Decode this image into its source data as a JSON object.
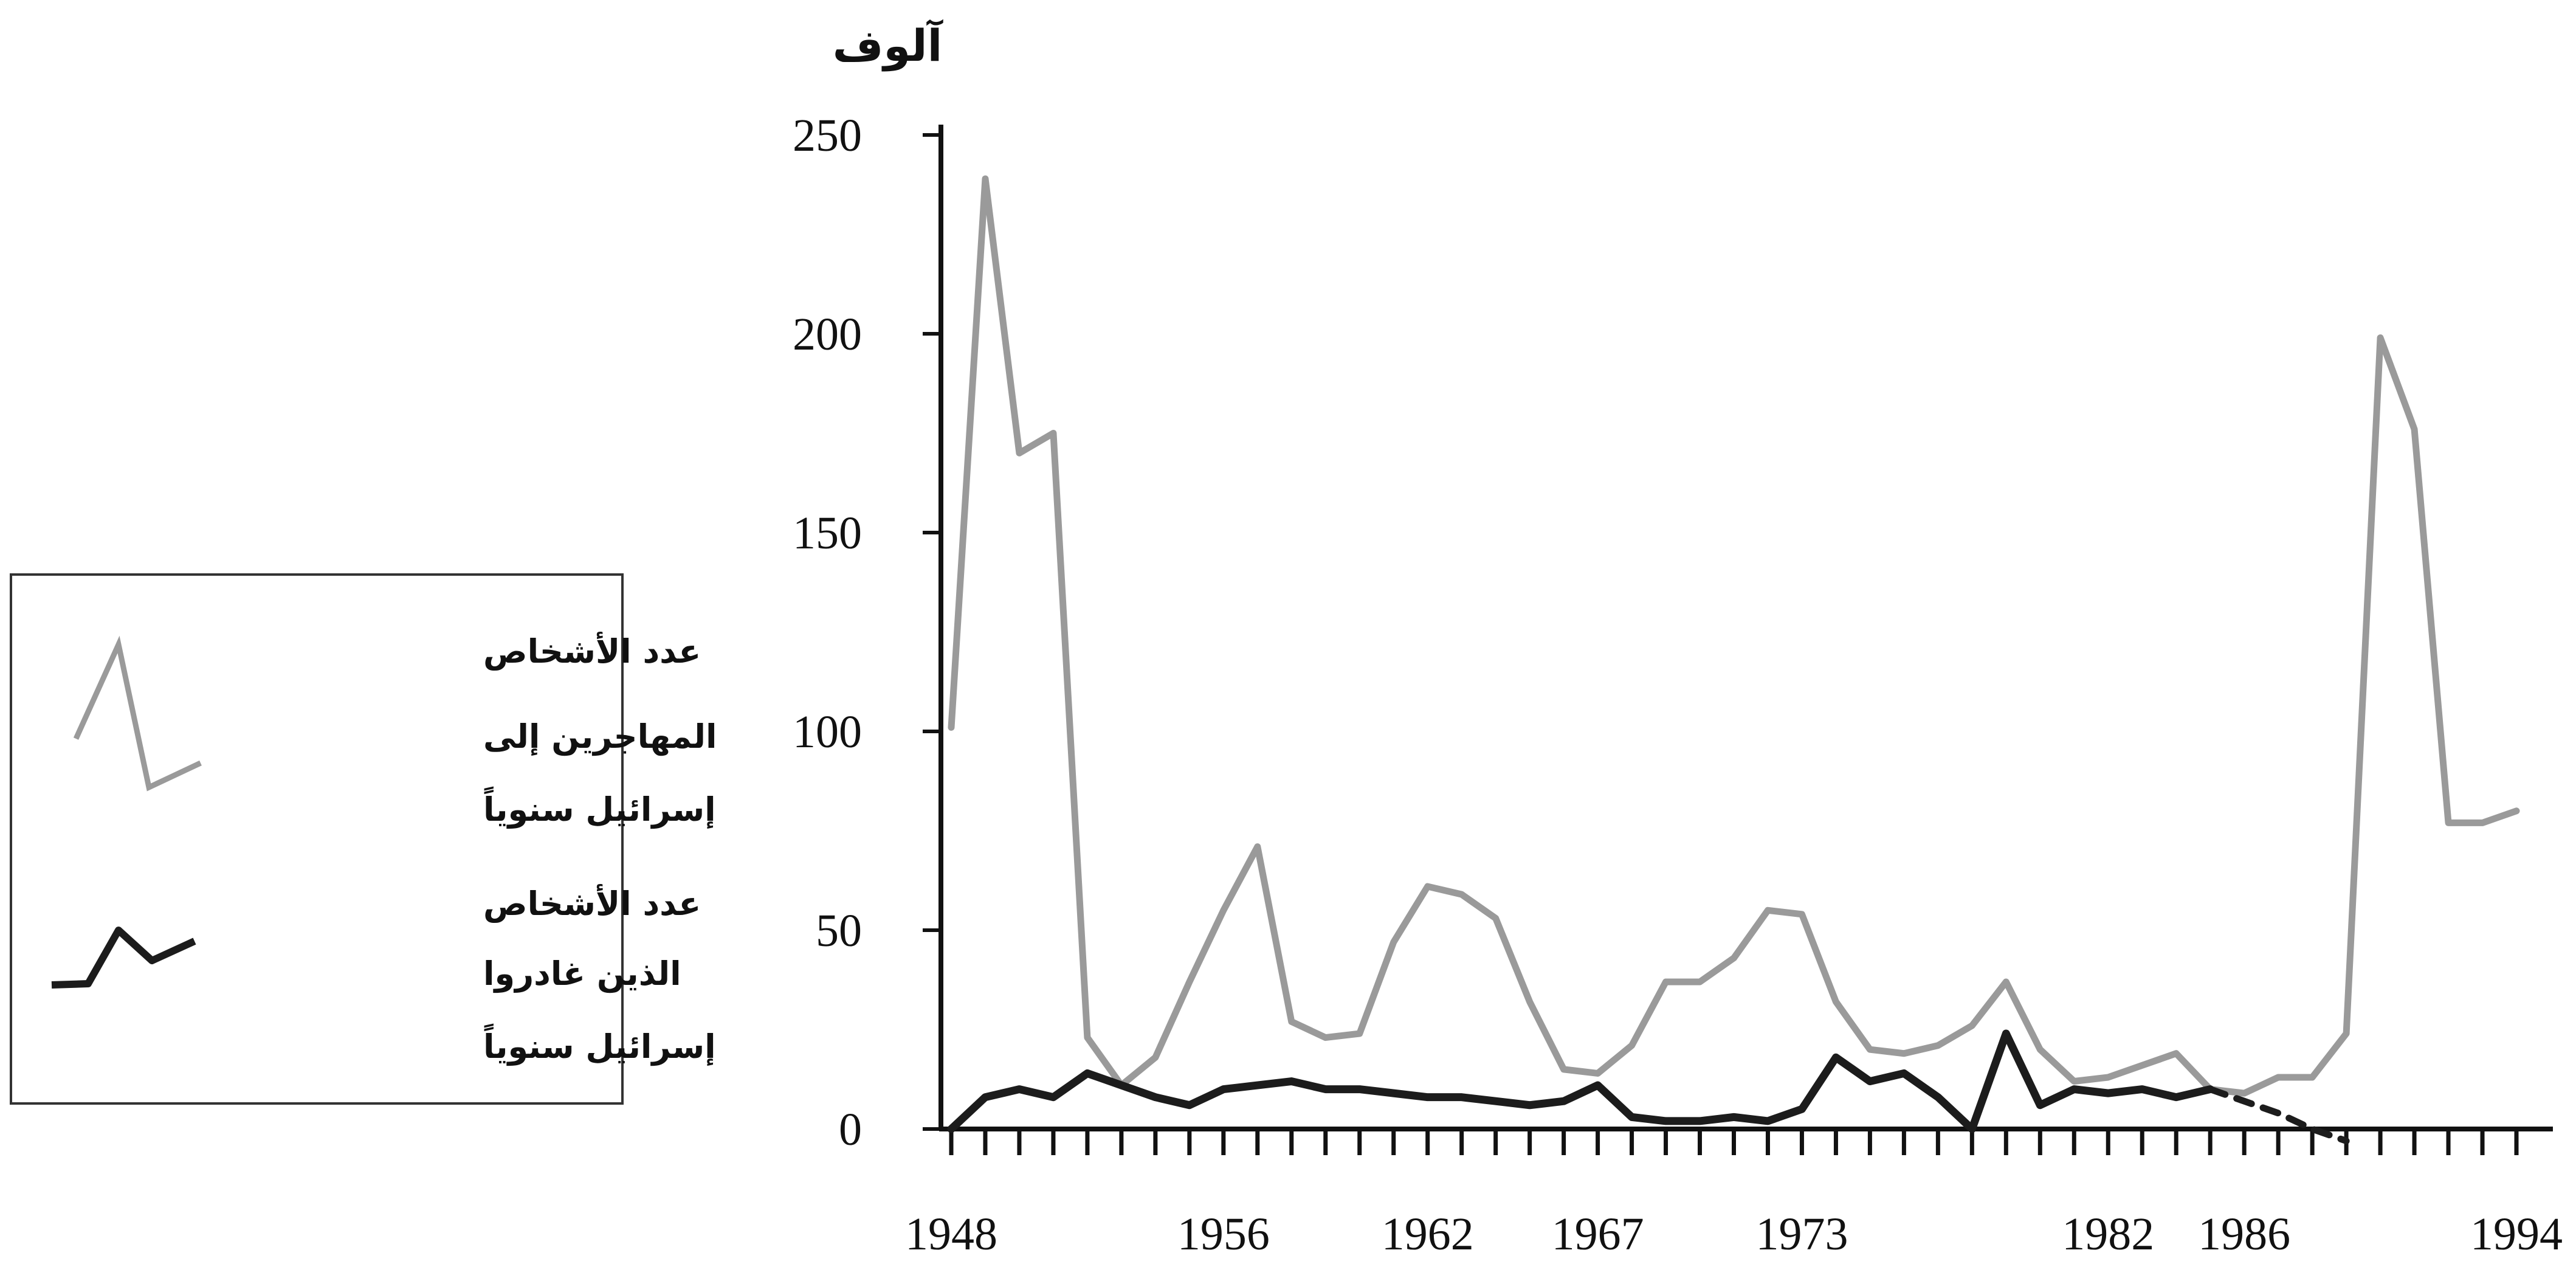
{
  "chart_data": {
    "type": "line",
    "title": "",
    "xlabel": "",
    "ylabel": "آلوف",
    "xlim": [
      1948,
      1994
    ],
    "ylim": [
      0,
      250
    ],
    "y_ticks": [
      0,
      50,
      100,
      150,
      200,
      250
    ],
    "x_tick_labels": [
      "1948",
      "1956",
      "1962",
      "1967",
      "1973",
      "1982",
      "1986",
      "1994"
    ],
    "grid": false,
    "legend_position": "left",
    "series": [
      {
        "name": "عدد الأشخاص المهاجرين إلى إسرائيل سنوياً",
        "color": "#9a9a9a",
        "x": [
          1948,
          1949,
          1950,
          1951,
          1952,
          1953,
          1954,
          1955,
          1956,
          1957,
          1958,
          1959,
          1960,
          1961,
          1962,
          1963,
          1964,
          1965,
          1966,
          1967,
          1968,
          1969,
          1970,
          1971,
          1972,
          1973,
          1974,
          1975,
          1976,
          1977,
          1978,
          1979,
          1980,
          1981,
          1982,
          1983,
          1984,
          1985,
          1986,
          1987,
          1988,
          1989,
          1990,
          1991,
          1992,
          1993,
          1994
        ],
        "values": [
          101,
          239,
          170,
          175,
          23,
          11,
          18,
          37,
          55,
          71,
          27,
          23,
          24,
          47,
          61,
          59,
          53,
          32,
          15,
          14,
          21,
          37,
          37,
          43,
          55,
          54,
          32,
          20,
          19,
          21,
          26,
          37,
          20,
          12,
          13,
          16,
          19,
          10,
          9,
          13,
          13,
          24,
          199,
          176,
          77,
          77,
          80
        ]
      },
      {
        "name": "عدد الأشخاص الذين غادروا إسرائيل سنوياً",
        "color": "#1c1c1c",
        "x": [
          1948,
          1949,
          1950,
          1951,
          1952,
          1953,
          1954,
          1955,
          1956,
          1957,
          1958,
          1959,
          1960,
          1961,
          1962,
          1963,
          1964,
          1965,
          1966,
          1967,
          1968,
          1969,
          1970,
          1971,
          1972,
          1973,
          1974,
          1975,
          1976,
          1977,
          1978,
          1979,
          1980,
          1981,
          1982,
          1983,
          1984,
          1985,
          1986,
          1987,
          1988,
          1989
        ],
        "values": [
          0,
          8,
          10,
          8,
          14,
          11,
          8,
          6,
          10,
          11,
          12,
          10,
          10,
          9,
          8,
          8,
          7,
          6,
          7,
          11,
          3,
          2,
          2,
          3,
          2,
          5,
          18,
          12,
          14,
          8,
          0,
          24,
          6,
          10,
          9,
          10,
          8,
          10,
          7,
          4,
          0,
          -3
        ],
        "dashed_from_index": 37
      }
    ],
    "legend": {
      "entries": [
        {
          "lines": [
            "عدد الأشخاص",
            "المهاجرين إلى",
            "إسرائيل سنوياً"
          ]
        },
        {
          "lines": [
            "عدد الأشخاص",
            "الذين غادروا",
            "إسرائيل سنوياً"
          ]
        }
      ]
    }
  }
}
